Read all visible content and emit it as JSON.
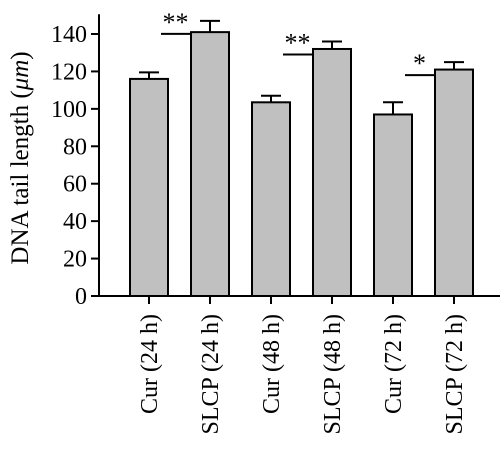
{
  "chart_data": {
    "type": "bar",
    "title": "",
    "xlabel": "",
    "ylabel": "DNA tail length (",
    "ylabel_unit": "μm",
    "ylabel_close": ")",
    "ylim": [
      0,
      150
    ],
    "yticks": [
      0,
      20,
      40,
      60,
      80,
      100,
      120,
      140
    ],
    "categories": [
      "Cur (24 h)",
      "SLCP (24 h)",
      "Cur (48 h)",
      "SLCP (48 h)",
      "Cur (72 h)",
      "SLCP (72 h)"
    ],
    "values": [
      116,
      141,
      103.5,
      132,
      97,
      121
    ],
    "errors": [
      3.5,
      6,
      3.5,
      4,
      6.5,
      4
    ],
    "bar_color": "#c0c0c0",
    "grid": false,
    "significance": [
      {
        "pair": [
          0,
          1
        ],
        "label": "**"
      },
      {
        "pair": [
          2,
          3
        ],
        "label": "**"
      },
      {
        "pair": [
          4,
          5
        ],
        "label": "*"
      }
    ]
  }
}
